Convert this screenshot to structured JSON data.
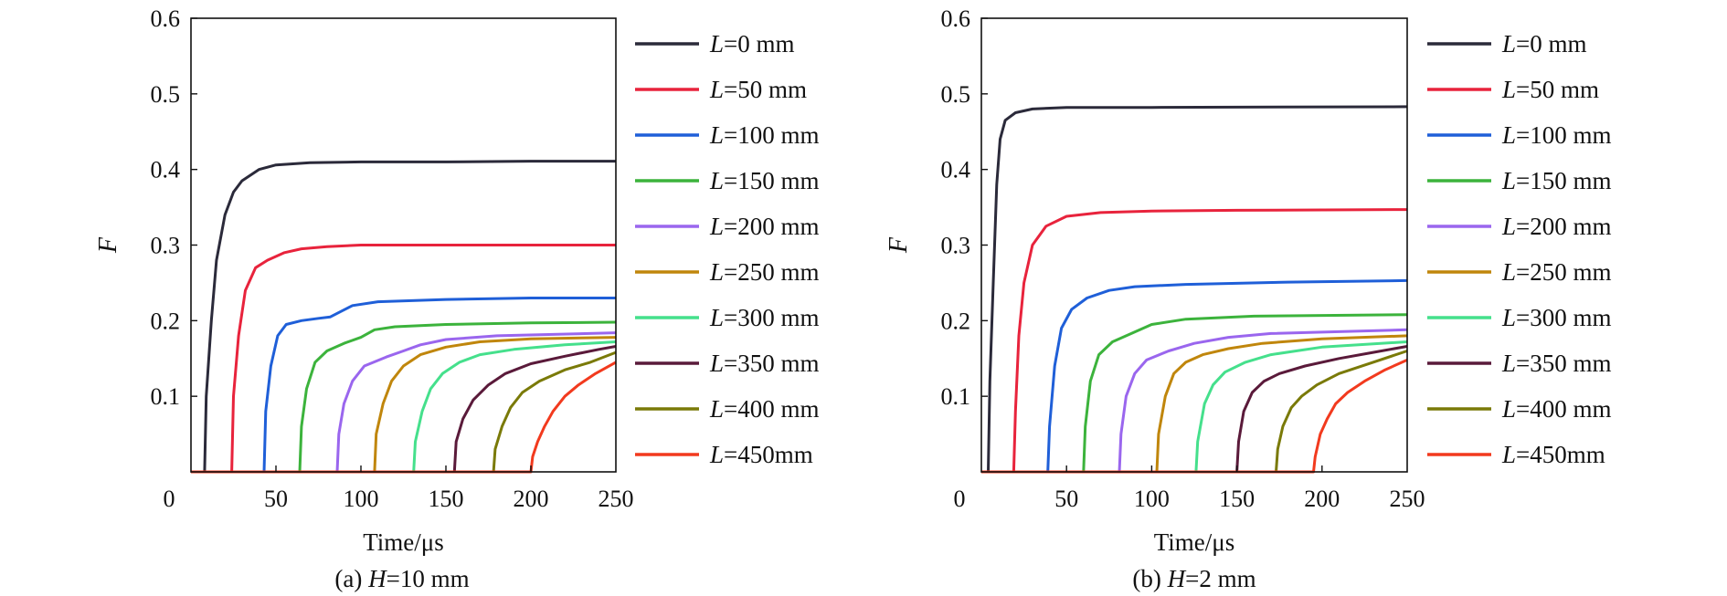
{
  "colors": {
    "L0": "#2b2a3a",
    "L50": "#e8233c",
    "L100": "#1f5fd8",
    "L150": "#3cb33c",
    "L200": "#9a66ee",
    "L250": "#c0860c",
    "L300": "#45e08c",
    "L350": "#5a1a3a",
    "L400": "#7a7a08",
    "L450": "#f23a1e"
  },
  "chart_data": [
    {
      "type": "line",
      "caption_prefix": "(a) ",
      "caption_var": "H",
      "caption_suffix": "=10 mm",
      "xlabel": "Time/μs",
      "ylabel": "F",
      "xlim": [
        0,
        250
      ],
      "ylim": [
        0,
        0.6
      ],
      "x_ticks": [
        "0",
        "50",
        "100",
        "150",
        "200",
        "250"
      ],
      "y_ticks": [
        "0.1",
        "0.2",
        "0.3",
        "0.4",
        "0.5",
        "0.6"
      ],
      "grid": false,
      "legend_position": "outside-right",
      "series": [
        {
          "name_var": "L",
          "name_rest": "=0 mm",
          "color_key": "L0",
          "points": [
            [
              0,
              0
            ],
            [
              8,
              0
            ],
            [
              9,
              0.1
            ],
            [
              12,
              0.2
            ],
            [
              15,
              0.28
            ],
            [
              20,
              0.34
            ],
            [
              25,
              0.37
            ],
            [
              30,
              0.385
            ],
            [
              40,
              0.4
            ],
            [
              50,
              0.406
            ],
            [
              70,
              0.409
            ],
            [
              100,
              0.41
            ],
            [
              150,
              0.41
            ],
            [
              200,
              0.411
            ],
            [
              250,
              0.411
            ]
          ]
        },
        {
          "name_var": "L",
          "name_rest": "=50 mm",
          "color_key": "L50",
          "points": [
            [
              0,
              0
            ],
            [
              24,
              0
            ],
            [
              25,
              0.1
            ],
            [
              28,
              0.18
            ],
            [
              32,
              0.24
            ],
            [
              38,
              0.27
            ],
            [
              45,
              0.28
            ],
            [
              55,
              0.29
            ],
            [
              65,
              0.295
            ],
            [
              80,
              0.298
            ],
            [
              100,
              0.3
            ],
            [
              150,
              0.3
            ],
            [
              250,
              0.3
            ]
          ]
        },
        {
          "name_var": "L",
          "name_rest": "=100 mm",
          "color_key": "L100",
          "points": [
            [
              0,
              0
            ],
            [
              43,
              0
            ],
            [
              44,
              0.08
            ],
            [
              47,
              0.14
            ],
            [
              51,
              0.18
            ],
            [
              56,
              0.195
            ],
            [
              65,
              0.2
            ],
            [
              75,
              0.203
            ],
            [
              82,
              0.205
            ],
            [
              88,
              0.212
            ],
            [
              95,
              0.22
            ],
            [
              110,
              0.225
            ],
            [
              150,
              0.228
            ],
            [
              200,
              0.23
            ],
            [
              250,
              0.23
            ]
          ]
        },
        {
          "name_var": "L",
          "name_rest": "=150 mm",
          "color_key": "L150",
          "points": [
            [
              0,
              0
            ],
            [
              64,
              0
            ],
            [
              65,
              0.06
            ],
            [
              68,
              0.11
            ],
            [
              73,
              0.145
            ],
            [
              80,
              0.16
            ],
            [
              90,
              0.17
            ],
            [
              100,
              0.178
            ],
            [
              108,
              0.188
            ],
            [
              120,
              0.192
            ],
            [
              150,
              0.195
            ],
            [
              200,
              0.197
            ],
            [
              250,
              0.198
            ]
          ]
        },
        {
          "name_var": "L",
          "name_rest": "=200 mm",
          "color_key": "L200",
          "points": [
            [
              0,
              0
            ],
            [
              86,
              0
            ],
            [
              87,
              0.05
            ],
            [
              90,
              0.09
            ],
            [
              95,
              0.12
            ],
            [
              102,
              0.14
            ],
            [
              115,
              0.152
            ],
            [
              125,
              0.16
            ],
            [
              135,
              0.168
            ],
            [
              150,
              0.175
            ],
            [
              180,
              0.18
            ],
            [
              250,
              0.184
            ]
          ]
        },
        {
          "name_var": "L",
          "name_rest": "=250 mm",
          "color_key": "L250",
          "points": [
            [
              0,
              0
            ],
            [
              108,
              0
            ],
            [
              109,
              0.05
            ],
            [
              113,
              0.09
            ],
            [
              118,
              0.12
            ],
            [
              125,
              0.14
            ],
            [
              135,
              0.155
            ],
            [
              150,
              0.165
            ],
            [
              170,
              0.172
            ],
            [
              200,
              0.176
            ],
            [
              250,
              0.178
            ]
          ]
        },
        {
          "name_var": "L",
          "name_rest": "=300 mm",
          "color_key": "L300",
          "points": [
            [
              0,
              0
            ],
            [
              131,
              0
            ],
            [
              132,
              0.04
            ],
            [
              136,
              0.08
            ],
            [
              141,
              0.11
            ],
            [
              148,
              0.13
            ],
            [
              158,
              0.145
            ],
            [
              170,
              0.155
            ],
            [
              190,
              0.162
            ],
            [
              220,
              0.168
            ],
            [
              250,
              0.172
            ]
          ]
        },
        {
          "name_var": "L",
          "name_rest": "=350 mm",
          "color_key": "L350",
          "points": [
            [
              0,
              0
            ],
            [
              155,
              0
            ],
            [
              156,
              0.04
            ],
            [
              160,
              0.07
            ],
            [
              166,
              0.095
            ],
            [
              175,
              0.115
            ],
            [
              185,
              0.13
            ],
            [
              200,
              0.143
            ],
            [
              220,
              0.153
            ],
            [
              240,
              0.162
            ],
            [
              250,
              0.166
            ]
          ]
        },
        {
          "name_var": "L",
          "name_rest": "=400 mm",
          "color_key": "L400",
          "points": [
            [
              0,
              0
            ],
            [
              178,
              0
            ],
            [
              179,
              0.03
            ],
            [
              183,
              0.06
            ],
            [
              188,
              0.085
            ],
            [
              195,
              0.105
            ],
            [
              205,
              0.12
            ],
            [
              220,
              0.135
            ],
            [
              235,
              0.145
            ],
            [
              250,
              0.158
            ]
          ]
        },
        {
          "name_var": "L",
          "name_rest": "=450mm",
          "color_key": "L450",
          "points": [
            [
              0,
              0
            ],
            [
              200,
              0
            ],
            [
              201,
              0.02
            ],
            [
              204,
              0.04
            ],
            [
              208,
              0.06
            ],
            [
              213,
              0.08
            ],
            [
              220,
              0.1
            ],
            [
              228,
              0.115
            ],
            [
              238,
              0.13
            ],
            [
              250,
              0.145
            ]
          ]
        }
      ]
    },
    {
      "type": "line",
      "caption_prefix": "(b) ",
      "caption_var": "H",
      "caption_suffix": "=2 mm",
      "xlabel": "Time/μs",
      "ylabel": "F",
      "xlim": [
        0,
        250
      ],
      "ylim": [
        0,
        0.6
      ],
      "x_ticks": [
        "0",
        "50",
        "100",
        "150",
        "200",
        "250"
      ],
      "y_ticks": [
        "0.1",
        "0.2",
        "0.3",
        "0.4",
        "0.5",
        "0.6"
      ],
      "grid": false,
      "legend_position": "outside-right",
      "series": [
        {
          "name_var": "L",
          "name_rest": "=0 mm",
          "color_key": "L0",
          "points": [
            [
              0,
              0
            ],
            [
              4,
              0
            ],
            [
              5,
              0.12
            ],
            [
              7,
              0.25
            ],
            [
              9,
              0.38
            ],
            [
              11,
              0.44
            ],
            [
              14,
              0.465
            ],
            [
              20,
              0.475
            ],
            [
              30,
              0.48
            ],
            [
              50,
              0.482
            ],
            [
              100,
              0.482
            ],
            [
              250,
              0.483
            ]
          ]
        },
        {
          "name_var": "L",
          "name_rest": "=50 mm",
          "color_key": "L50",
          "points": [
            [
              0,
              0
            ],
            [
              19,
              0
            ],
            [
              20,
              0.08
            ],
            [
              22,
              0.18
            ],
            [
              25,
              0.25
            ],
            [
              30,
              0.3
            ],
            [
              38,
              0.325
            ],
            [
              50,
              0.338
            ],
            [
              70,
              0.343
            ],
            [
              100,
              0.345
            ],
            [
              150,
              0.346
            ],
            [
              250,
              0.347
            ]
          ]
        },
        {
          "name_var": "L",
          "name_rest": "=100 mm",
          "color_key": "L100",
          "points": [
            [
              0,
              0
            ],
            [
              39,
              0
            ],
            [
              40,
              0.06
            ],
            [
              43,
              0.14
            ],
            [
              47,
              0.19
            ],
            [
              53,
              0.215
            ],
            [
              62,
              0.23
            ],
            [
              75,
              0.24
            ],
            [
              90,
              0.245
            ],
            [
              120,
              0.248
            ],
            [
              180,
              0.251
            ],
            [
              250,
              0.253
            ]
          ]
        },
        {
          "name_var": "L",
          "name_rest": "=150 mm",
          "color_key": "L150",
          "points": [
            [
              0,
              0
            ],
            [
              60,
              0
            ],
            [
              61,
              0.06
            ],
            [
              64,
              0.12
            ],
            [
              69,
              0.155
            ],
            [
              77,
              0.172
            ],
            [
              90,
              0.185
            ],
            [
              100,
              0.195
            ],
            [
              120,
              0.202
            ],
            [
              160,
              0.206
            ],
            [
              250,
              0.208
            ]
          ]
        },
        {
          "name_var": "L",
          "name_rest": "=200 mm",
          "color_key": "L200",
          "points": [
            [
              0,
              0
            ],
            [
              81,
              0
            ],
            [
              82,
              0.05
            ],
            [
              85,
              0.1
            ],
            [
              90,
              0.13
            ],
            [
              97,
              0.148
            ],
            [
              110,
              0.16
            ],
            [
              125,
              0.17
            ],
            [
              145,
              0.178
            ],
            [
              170,
              0.183
            ],
            [
              250,
              0.188
            ]
          ]
        },
        {
          "name_var": "L",
          "name_rest": "=250 mm",
          "color_key": "L250",
          "points": [
            [
              0,
              0
            ],
            [
              103,
              0
            ],
            [
              104,
              0.05
            ],
            [
              108,
              0.1
            ],
            [
              113,
              0.13
            ],
            [
              120,
              0.145
            ],
            [
              130,
              0.155
            ],
            [
              145,
              0.163
            ],
            [
              165,
              0.17
            ],
            [
              200,
              0.176
            ],
            [
              250,
              0.18
            ]
          ]
        },
        {
          "name_var": "L",
          "name_rest": "=300 mm",
          "color_key": "L300",
          "points": [
            [
              0,
              0
            ],
            [
              126,
              0
            ],
            [
              127,
              0.04
            ],
            [
              131,
              0.09
            ],
            [
              136,
              0.115
            ],
            [
              143,
              0.132
            ],
            [
              155,
              0.145
            ],
            [
              170,
              0.155
            ],
            [
              200,
              0.165
            ],
            [
              250,
              0.172
            ]
          ]
        },
        {
          "name_var": "L",
          "name_rest": "=350 mm",
          "color_key": "L350",
          "points": [
            [
              0,
              0
            ],
            [
              150,
              0
            ],
            [
              151,
              0.04
            ],
            [
              154,
              0.08
            ],
            [
              159,
              0.105
            ],
            [
              166,
              0.12
            ],
            [
              175,
              0.13
            ],
            [
              190,
              0.14
            ],
            [
              210,
              0.15
            ],
            [
              230,
              0.158
            ],
            [
              250,
              0.166
            ]
          ]
        },
        {
          "name_var": "L",
          "name_rest": "=400 mm",
          "color_key": "L400",
          "points": [
            [
              0,
              0
            ],
            [
              173,
              0
            ],
            [
              174,
              0.03
            ],
            [
              177,
              0.06
            ],
            [
              182,
              0.085
            ],
            [
              188,
              0.1
            ],
            [
              197,
              0.115
            ],
            [
              210,
              0.13
            ],
            [
              230,
              0.145
            ],
            [
              250,
              0.16
            ]
          ]
        },
        {
          "name_var": "L",
          "name_rest": "=450mm",
          "color_key": "L450",
          "points": [
            [
              0,
              0
            ],
            [
              195,
              0
            ],
            [
              196,
              0.02
            ],
            [
              199,
              0.05
            ],
            [
              203,
              0.07
            ],
            [
              208,
              0.09
            ],
            [
              215,
              0.105
            ],
            [
              225,
              0.12
            ],
            [
              237,
              0.135
            ],
            [
              250,
              0.148
            ]
          ]
        }
      ]
    }
  ]
}
